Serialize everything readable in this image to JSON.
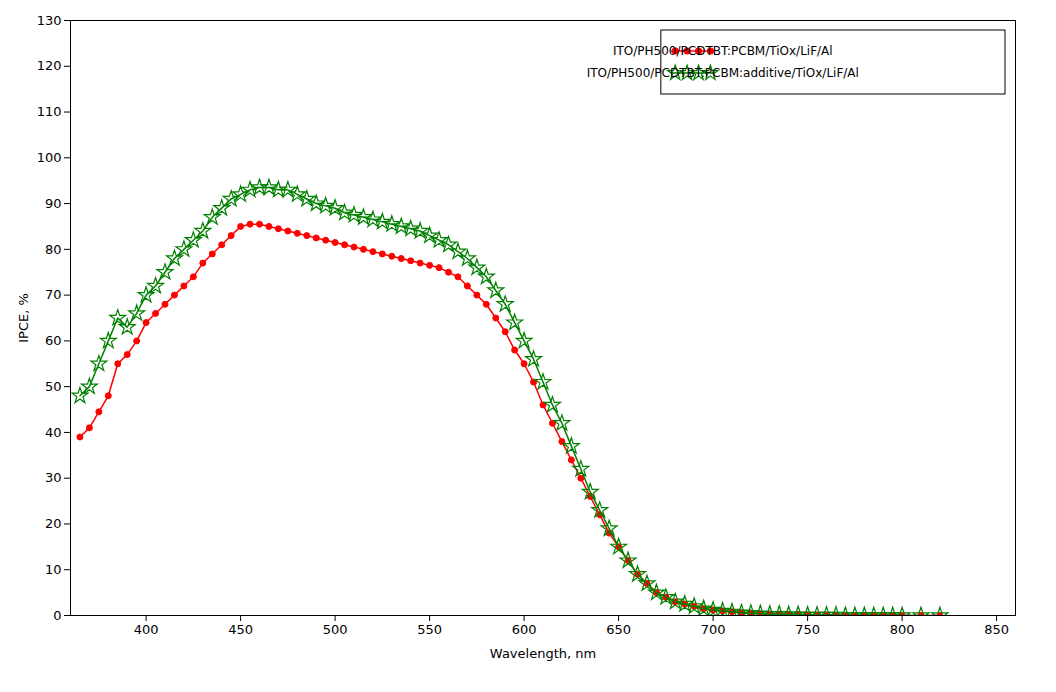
{
  "chart_data": {
    "type": "line",
    "xlabel": "Wavelength, nm",
    "ylabel": "IPCE, %",
    "xlim": [
      360,
      860
    ],
    "ylim": [
      0,
      130
    ],
    "xticks": [
      400,
      450,
      500,
      550,
      600,
      650,
      700,
      750,
      800,
      850
    ],
    "yticks": [
      0,
      10,
      20,
      30,
      40,
      50,
      60,
      70,
      80,
      90,
      100,
      110,
      120,
      130
    ],
    "grid": false,
    "legend": "upper right",
    "x": [
      365,
      370,
      375,
      380,
      385,
      390,
      395,
      400,
      405,
      410,
      415,
      420,
      425,
      430,
      435,
      440,
      445,
      450,
      455,
      460,
      465,
      470,
      475,
      480,
      485,
      490,
      495,
      500,
      505,
      510,
      515,
      520,
      525,
      530,
      535,
      540,
      545,
      550,
      555,
      560,
      565,
      570,
      575,
      580,
      585,
      590,
      595,
      600,
      605,
      610,
      615,
      620,
      625,
      630,
      635,
      640,
      645,
      650,
      655,
      660,
      665,
      670,
      675,
      680,
      685,
      690,
      695,
      700,
      705,
      710,
      715,
      720,
      725,
      730,
      735,
      740,
      745,
      750,
      755,
      760,
      765,
      770,
      775,
      780,
      785,
      790,
      795,
      800,
      810,
      820
    ],
    "series": [
      {
        "name": "ITO/PH500/PCDTBT:PCBM/TiOx/LiF/Al",
        "color": "#ff0000",
        "marker": "circle",
        "values": [
          39.0,
          41.0,
          44.5,
          48.0,
          55.0,
          57.0,
          60.0,
          64.0,
          66.0,
          68.0,
          70.0,
          72.0,
          74.0,
          77.0,
          79.0,
          81.0,
          83.0,
          85.0,
          85.5,
          85.5,
          85.0,
          84.5,
          84.0,
          83.5,
          83.0,
          82.5,
          82.0,
          81.5,
          81.0,
          80.5,
          80.0,
          79.5,
          79.0,
          78.5,
          78.0,
          77.5,
          77.0,
          76.5,
          76.0,
          75.0,
          74.0,
          72.0,
          70.0,
          68.0,
          65.0,
          62.0,
          58.0,
          55.0,
          51.0,
          46.0,
          42.0,
          38.0,
          34.0,
          30.0,
          26.0,
          22.0,
          18.0,
          15.0,
          12.0,
          9.0,
          7.0,
          5.0,
          4.0,
          3.0,
          2.5,
          2.0,
          1.5,
          1.2,
          1.0,
          0.8,
          0.6,
          0.5,
          0.4,
          0.3,
          0.3,
          0.2,
          0.2,
          0.1,
          0.1,
          0.1,
          0.1,
          0.0,
          0.0,
          0.0,
          0.0,
          0.0,
          0.0,
          0.0,
          0.0,
          0.0
        ]
      },
      {
        "name": "ITO/PH500/PCDTBT:PCBM:additive/TiOx/LiF/Al",
        "color": "#008000",
        "marker": "star",
        "values": [
          48.0,
          50.0,
          55.0,
          60.0,
          65.0,
          63.0,
          66.0,
          70.0,
          72.0,
          75.0,
          78.0,
          80.0,
          82.0,
          84.0,
          87.0,
          89.0,
          91.0,
          92.0,
          93.0,
          93.5,
          93.5,
          93.0,
          93.0,
          92.0,
          91.0,
          90.0,
          89.5,
          89.0,
          88.0,
          87.5,
          87.0,
          86.5,
          86.0,
          85.5,
          85.0,
          84.5,
          84.0,
          83.0,
          82.0,
          81.0,
          79.5,
          78.0,
          76.0,
          74.0,
          71.0,
          68.0,
          64.0,
          60.0,
          56.0,
          51.0,
          46.0,
          42.0,
          37.0,
          32.0,
          27.0,
          23.0,
          19.0,
          15.0,
          12.0,
          9.0,
          7.0,
          5.0,
          4.0,
          3.0,
          2.5,
          2.0,
          1.5,
          1.2,
          1.0,
          0.8,
          0.6,
          0.5,
          0.4,
          0.3,
          0.3,
          0.2,
          0.2,
          0.1,
          0.1,
          0.1,
          0.1,
          0.0,
          0.0,
          0.0,
          0.0,
          0.0,
          0.0,
          0.0,
          0.0,
          0.0
        ]
      }
    ]
  }
}
